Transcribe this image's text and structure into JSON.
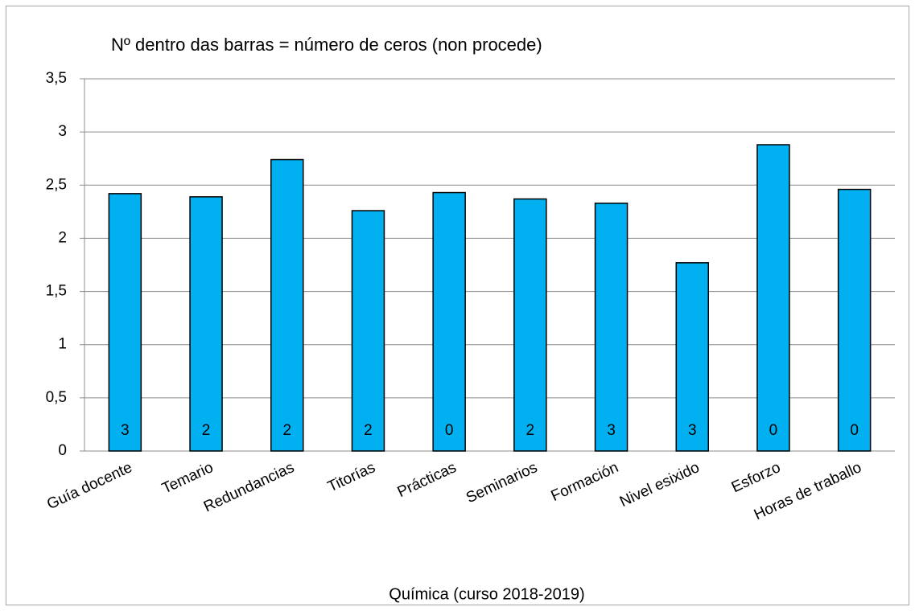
{
  "chart_data": {
    "type": "bar",
    "title": "Nº dentro das barras = número de ceros (non procede)",
    "x_label": "Química (curso 2018-2019)",
    "categories": [
      "Guía docente",
      "Temario",
      "Redundancias",
      "Titorías",
      "Prácticas",
      "Seminarios",
      "Formación",
      "Nivel esixido",
      "Esforzo",
      "Horas de traballo"
    ],
    "values": [
      2.42,
      2.39,
      2.74,
      2.26,
      2.43,
      2.37,
      2.33,
      1.77,
      2.88,
      2.46
    ],
    "zero_counts": [
      3,
      2,
      2,
      2,
      0,
      2,
      3,
      3,
      0,
      0
    ],
    "color": "#00b0f0",
    "ylim": [
      0,
      3.5
    ],
    "yticks": [
      0,
      {
        "value": 0.5,
        "label": "0,5"
      },
      1,
      {
        "value": 1.5,
        "label": "1,5"
      },
      2,
      {
        "value": 2.5,
        "label": "2,5"
      },
      3,
      {
        "value": 3.5,
        "label": "3,5"
      }
    ],
    "grid": true
  }
}
